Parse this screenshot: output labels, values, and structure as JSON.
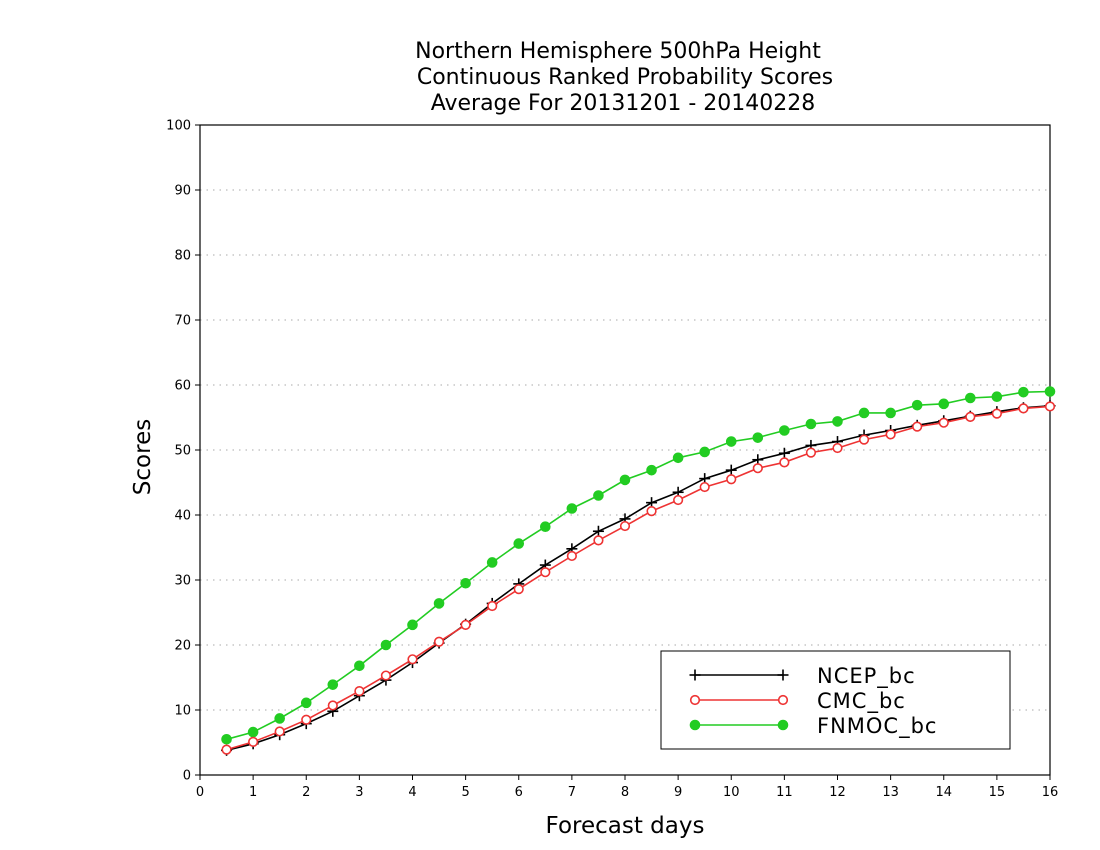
{
  "chart_data": {
    "type": "line",
    "title": [
      "Northern Hemisphere 500hPa Height",
      "Continuous Ranked Probability Scores",
      "Average For 20131201 - 20140228"
    ],
    "xlabel": "Forecast days",
    "ylabel": "Scores",
    "xlim": [
      0,
      16
    ],
    "ylim": [
      0,
      100
    ],
    "xticks": [
      0,
      1,
      2,
      3,
      4,
      5,
      6,
      7,
      8,
      9,
      10,
      11,
      12,
      13,
      14,
      15,
      16
    ],
    "yticks": [
      0,
      10,
      20,
      30,
      40,
      50,
      60,
      70,
      80,
      90,
      100
    ],
    "grid": "horizontal dotted",
    "legend_position": "bottom-right",
    "x": [
      0.5,
      1,
      1.5,
      2,
      2.5,
      3,
      3.5,
      4,
      4.5,
      5,
      5.5,
      6,
      6.5,
      7,
      7.5,
      8,
      8.5,
      9,
      9.5,
      10,
      10.5,
      11,
      11.5,
      12,
      12.5,
      13,
      13.5,
      14,
      14.5,
      15,
      15.5,
      16
    ],
    "series": [
      {
        "name": "NCEP_bc",
        "color": "#000000",
        "marker": "plus",
        "values": [
          3.8,
          4.8,
          6.2,
          7.9,
          9.8,
          12.2,
          14.6,
          17.3,
          20.3,
          23.2,
          26.4,
          29.4,
          32.3,
          34.8,
          37.5,
          39.4,
          41.9,
          43.5,
          45.6,
          46.9,
          48.5,
          49.5,
          50.7,
          51.3,
          52.3,
          53.0,
          53.8,
          54.5,
          55.2,
          55.9,
          56.5,
          56.8
        ]
      },
      {
        "name": "CMC_bc",
        "color": "#ee3333",
        "marker": "open-circle",
        "values": [
          3.9,
          5.1,
          6.7,
          8.5,
          10.7,
          12.9,
          15.3,
          17.8,
          20.5,
          23.1,
          26.0,
          28.6,
          31.2,
          33.7,
          36.1,
          38.3,
          40.6,
          42.3,
          44.3,
          45.5,
          47.2,
          48.1,
          49.6,
          50.3,
          51.6,
          52.4,
          53.6,
          54.2,
          55.1,
          55.6,
          56.4,
          56.7
        ]
      },
      {
        "name": "FNMOC_bc",
        "color": "#22cc22",
        "marker": "filled-circle",
        "values": [
          5.5,
          6.6,
          8.7,
          11.1,
          13.9,
          16.8,
          20.0,
          23.1,
          26.4,
          29.5,
          32.7,
          35.6,
          38.2,
          41.0,
          43.0,
          45.4,
          46.9,
          48.8,
          49.7,
          51.3,
          51.9,
          53.0,
          54.0,
          54.4,
          55.7,
          55.7,
          56.9,
          57.1,
          58.0,
          58.2,
          58.9,
          59.0
        ]
      }
    ]
  }
}
